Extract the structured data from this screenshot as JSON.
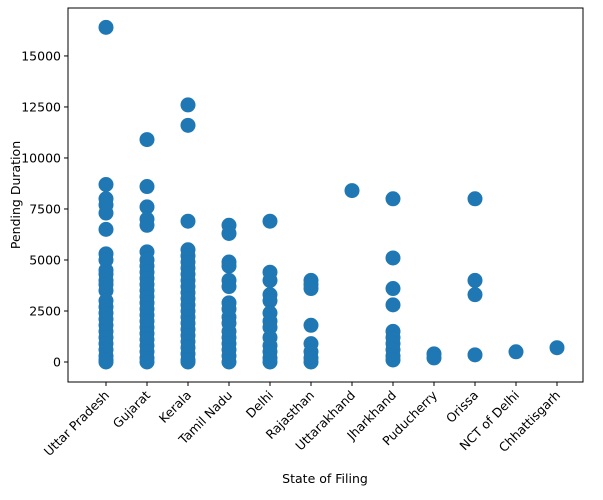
{
  "chart_data": {
    "type": "scatter",
    "xlabel": "State of Filing",
    "ylabel": "Pending Duration",
    "categories": [
      "Uttar Pradesh",
      "Gujarat",
      "Kerala",
      "Tamil Nadu",
      "Delhi",
      "Rajasthan",
      "Uttarakhand",
      "Jharkhand",
      "Puducherry",
      "Orissa",
      "NCT of Delhi",
      "Chhattisgarh"
    ],
    "color": "#1f77b4",
    "ylim": [
      -980,
      17350
    ],
    "yticks": [
      0,
      2500,
      5000,
      7500,
      10000,
      12500,
      15000
    ],
    "x": [
      "Uttar Pradesh",
      "Uttar Pradesh",
      "Uttar Pradesh",
      "Uttar Pradesh",
      "Uttar Pradesh",
      "Uttar Pradesh",
      "Uttar Pradesh",
      "Uttar Pradesh",
      "Uttar Pradesh",
      "Uttar Pradesh",
      "Uttar Pradesh",
      "Uttar Pradesh",
      "Uttar Pradesh",
      "Uttar Pradesh",
      "Uttar Pradesh",
      "Uttar Pradesh",
      "Uttar Pradesh",
      "Uttar Pradesh",
      "Uttar Pradesh",
      "Uttar Pradesh",
      "Uttar Pradesh",
      "Uttar Pradesh",
      "Uttar Pradesh",
      "Uttar Pradesh",
      "Uttar Pradesh",
      "Gujarat",
      "Gujarat",
      "Gujarat",
      "Gujarat",
      "Gujarat",
      "Gujarat",
      "Gujarat",
      "Gujarat",
      "Gujarat",
      "Gujarat",
      "Gujarat",
      "Gujarat",
      "Gujarat",
      "Gujarat",
      "Gujarat",
      "Gujarat",
      "Gujarat",
      "Gujarat",
      "Gujarat",
      "Gujarat",
      "Gujarat",
      "Gujarat",
      "Gujarat",
      "Gujarat",
      "Kerala",
      "Kerala",
      "Kerala",
      "Kerala",
      "Kerala",
      "Kerala",
      "Kerala",
      "Kerala",
      "Kerala",
      "Kerala",
      "Kerala",
      "Kerala",
      "Kerala",
      "Kerala",
      "Kerala",
      "Kerala",
      "Kerala",
      "Kerala",
      "Kerala",
      "Kerala",
      "Kerala",
      "Kerala",
      "Kerala",
      "Tamil Nadu",
      "Tamil Nadu",
      "Tamil Nadu",
      "Tamil Nadu",
      "Tamil Nadu",
      "Tamil Nadu",
      "Tamil Nadu",
      "Tamil Nadu",
      "Tamil Nadu",
      "Tamil Nadu",
      "Tamil Nadu",
      "Tamil Nadu",
      "Tamil Nadu",
      "Tamil Nadu",
      "Tamil Nadu",
      "Tamil Nadu",
      "Delhi",
      "Delhi",
      "Delhi",
      "Delhi",
      "Delhi",
      "Delhi",
      "Delhi",
      "Delhi",
      "Delhi",
      "Delhi",
      "Delhi",
      "Delhi",
      "Delhi",
      "Rajasthan",
      "Rajasthan",
      "Rajasthan",
      "Rajasthan",
      "Rajasthan",
      "Rajasthan",
      "Rajasthan",
      "Rajasthan",
      "Uttarakhand",
      "Jharkhand",
      "Jharkhand",
      "Jharkhand",
      "Jharkhand",
      "Jharkhand",
      "Jharkhand",
      "Jharkhand",
      "Jharkhand",
      "Jharkhand",
      "Jharkhand",
      "Puducherry",
      "Puducherry",
      "Orissa",
      "Orissa",
      "Orissa",
      "Orissa",
      "NCT of Delhi",
      "Chhattisgarh"
    ],
    "values": [
      16400,
      8700,
      8000,
      7700,
      7300,
      6500,
      5300,
      5000,
      4500,
      4300,
      4000,
      3800,
      3500,
      3000,
      2700,
      2400,
      2100,
      1800,
      1500,
      1200,
      900,
      600,
      300,
      100,
      0,
      10900,
      8600,
      7600,
      7000,
      6700,
      5400,
      5000,
      4700,
      4400,
      4100,
      3800,
      3500,
      3200,
      2900,
      2600,
      2300,
      2000,
      1700,
      1400,
      1100,
      800,
      500,
      200,
      0,
      12600,
      11600,
      6900,
      5500,
      5200,
      4900,
      4600,
      4300,
      4000,
      3700,
      3400,
      3100,
      2800,
      2500,
      2200,
      1900,
      1600,
      1300,
      1000,
      700,
      400,
      100,
      0,
      6700,
      6300,
      4900,
      4700,
      4000,
      3700,
      2900,
      2600,
      2200,
      1900,
      1500,
      1200,
      900,
      600,
      300,
      0,
      6900,
      4400,
      4000,
      3300,
      3000,
      2400,
      2000,
      1700,
      1200,
      800,
      500,
      200,
      0,
      4000,
      3800,
      3600,
      1800,
      900,
      500,
      200,
      0,
      8400,
      8000,
      5100,
      3600,
      2800,
      1500,
      1200,
      900,
      600,
      300,
      100,
      400,
      200,
      8000,
      4000,
      3300,
      350,
      500,
      700
    ]
  }
}
